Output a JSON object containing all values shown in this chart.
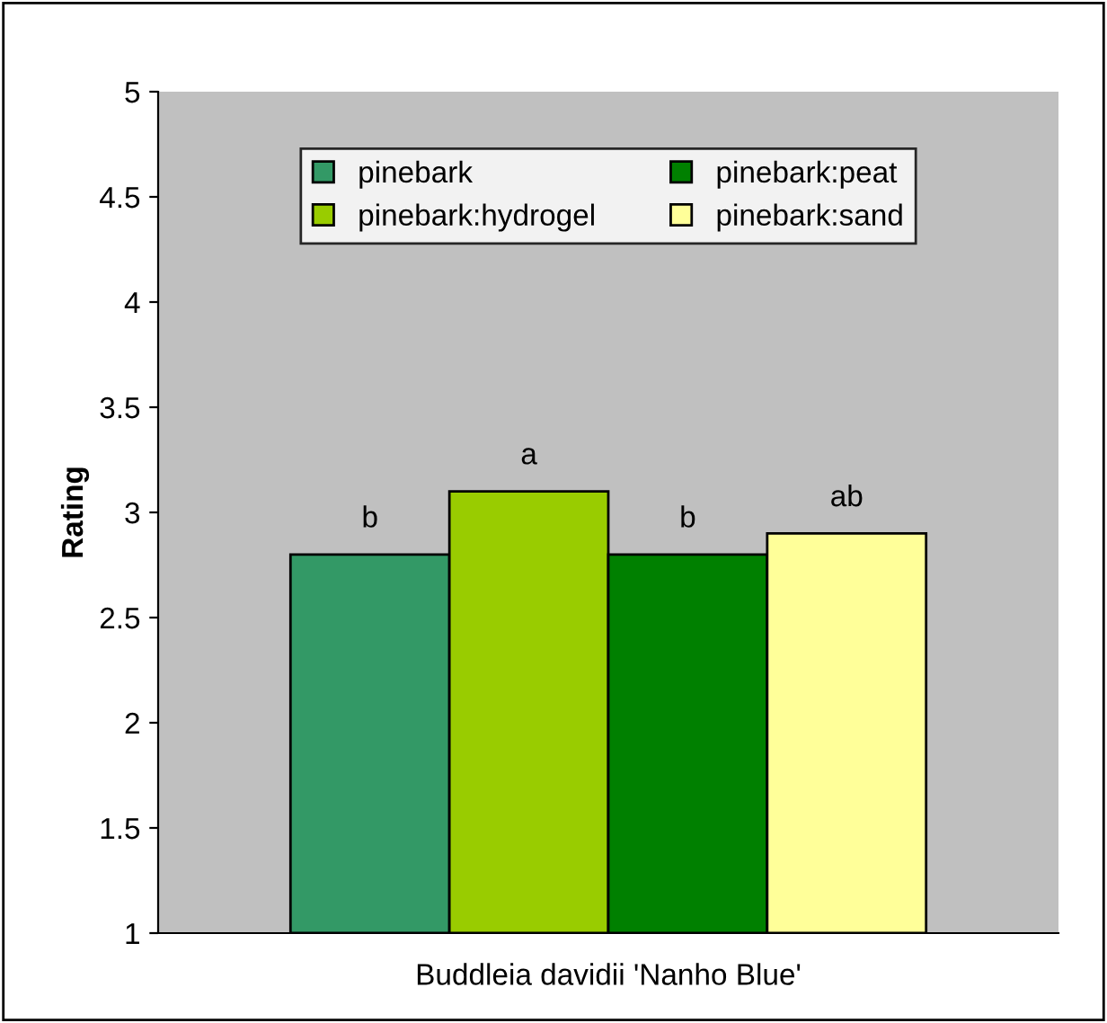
{
  "chart_data": {
    "type": "bar",
    "ylabel": "Rating",
    "categories": [
      "Buddleia davidii 'Nanho Blue'"
    ],
    "series": [
      {
        "name": "pinebark",
        "color": "#339966",
        "values": [
          2.8
        ]
      },
      {
        "name": "pinebark:hydrogel",
        "color": "#99cc00",
        "values": [
          3.1
        ]
      },
      {
        "name": "pinebark:peat",
        "color": "#008000",
        "values": [
          2.8
        ]
      },
      {
        "name": "pinebark:sand",
        "color": "#ffff99",
        "values": [
          2.9
        ]
      }
    ],
    "annotations": [
      "b",
      "a",
      "b",
      "ab"
    ],
    "ylim": [
      1,
      5
    ],
    "yticks": [
      1,
      1.5,
      2,
      2.5,
      3,
      3.5,
      4,
      4.5,
      5
    ],
    "grid": false,
    "legend": "top"
  }
}
